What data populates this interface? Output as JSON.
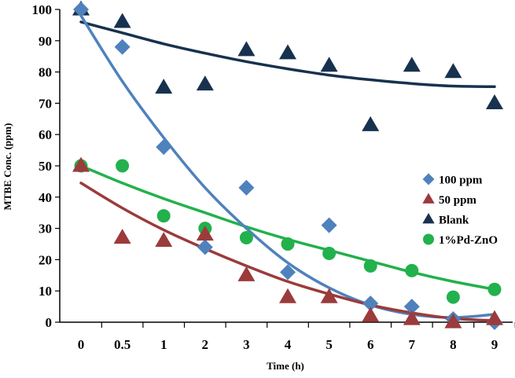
{
  "chart_data": {
    "type": "scatter",
    "xlabel": "Time (h)",
    "ylabel": "MTBE Conc. (ppm)",
    "categories": [
      "0",
      "0.5",
      "1",
      "2",
      "3",
      "4",
      "5",
      "6",
      "7",
      "8",
      "9"
    ],
    "ylim": [
      0,
      100
    ],
    "yticks": [
      "0",
      "10",
      "20",
      "30",
      "40",
      "50",
      "60",
      "70",
      "80",
      "90",
      "100"
    ],
    "grid": false,
    "legend_position": "right",
    "series": [
      {
        "name": "100 ppm",
        "marker": "diamond",
        "color": "#4f81bd",
        "values": [
          100,
          88,
          56,
          24,
          43,
          16,
          31,
          6,
          5,
          1,
          0
        ],
        "trend": [
          98,
          77,
          59,
          43,
          30,
          19,
          11,
          5.5,
          2.5,
          1.5,
          2.5
        ]
      },
      {
        "name": "50 ppm",
        "marker": "triangle",
        "color": "#9b3b3b",
        "values": [
          50,
          27,
          26,
          28,
          15,
          8,
          8,
          2,
          1,
          0,
          1
        ],
        "trend": [
          44.5,
          36.5,
          29.5,
          23.5,
          18,
          13,
          9,
          5.5,
          3,
          1.2,
          0.5
        ]
      },
      {
        "name": "Blank",
        "marker": "triangle",
        "color": "#17324f",
        "values": [
          100,
          96,
          75,
          76,
          87,
          86,
          82,
          63,
          82,
          80,
          70
        ],
        "trend": [
          96,
          92.5,
          89,
          86,
          83.3,
          81,
          79,
          77.5,
          76.3,
          75.5,
          75.3
        ]
      },
      {
        "name": "1%Pd-ZnO",
        "marker": "circle",
        "color": "#22b14c",
        "values": [
          50,
          50,
          34,
          30,
          27,
          25,
          22,
          18,
          16.5,
          8,
          10.5
        ],
        "trend": [
          50,
          44.5,
          39.5,
          35,
          30.5,
          26.5,
          23,
          19.5,
          16,
          13,
          10.5
        ]
      }
    ]
  }
}
